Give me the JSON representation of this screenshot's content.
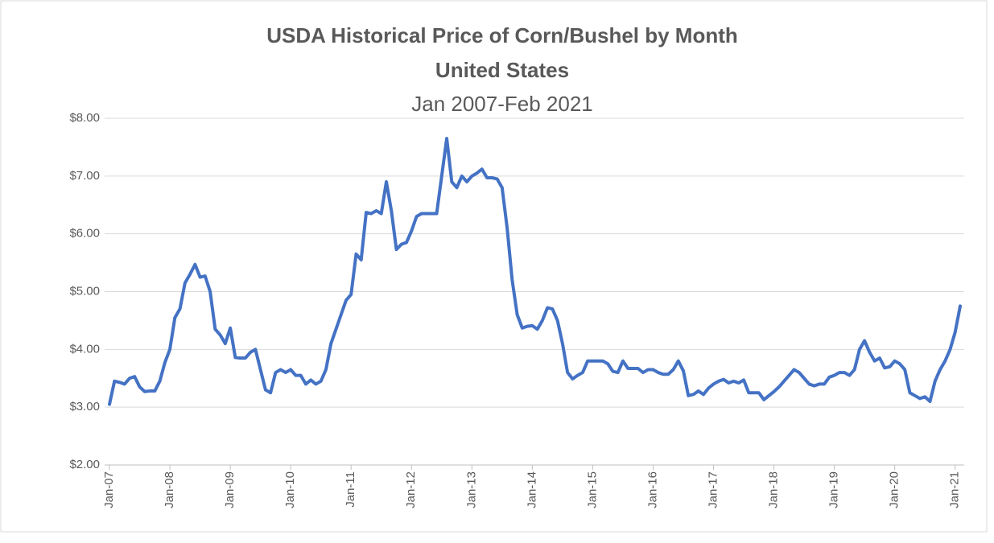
{
  "chart_data": {
    "type": "line",
    "title": "USDA Historical Price of Corn/Bushel  by Month",
    "subtitle": "United States",
    "period": "Jan 2007-Feb 2021",
    "categories": [
      "Jan-07",
      null,
      null,
      null,
      null,
      null,
      null,
      null,
      null,
      null,
      null,
      null,
      "Jan-08",
      null,
      null,
      null,
      null,
      null,
      null,
      null,
      null,
      null,
      null,
      null,
      "Jan-09",
      null,
      null,
      null,
      null,
      null,
      null,
      null,
      null,
      null,
      null,
      null,
      "Jan-10",
      null,
      null,
      null,
      null,
      null,
      null,
      null,
      null,
      null,
      null,
      null,
      "Jan-11",
      null,
      null,
      null,
      null,
      null,
      null,
      null,
      null,
      null,
      null,
      null,
      "Jan-12",
      null,
      null,
      null,
      null,
      null,
      null,
      null,
      null,
      null,
      null,
      null,
      "Jan-13",
      null,
      null,
      null,
      null,
      null,
      null,
      null,
      null,
      null,
      null,
      null,
      "Jan-14",
      null,
      null,
      null,
      null,
      null,
      null,
      null,
      null,
      null,
      null,
      null,
      "Jan-15",
      null,
      null,
      null,
      null,
      null,
      null,
      null,
      null,
      null,
      null,
      null,
      "Jan-16",
      null,
      null,
      null,
      null,
      null,
      null,
      null,
      null,
      null,
      null,
      null,
      "Jan-17",
      null,
      null,
      null,
      null,
      null,
      null,
      null,
      null,
      null,
      null,
      null,
      "Jan-18",
      null,
      null,
      null,
      null,
      null,
      null,
      null,
      null,
      null,
      null,
      null,
      "Jan-19",
      null,
      null,
      null,
      null,
      null,
      null,
      null,
      null,
      null,
      null,
      null,
      "Jan-20",
      null,
      null,
      null,
      null,
      null,
      null,
      null,
      null,
      null,
      null,
      null,
      "Jan-21",
      null
    ],
    "values": [
      3.05,
      3.45,
      3.43,
      3.4,
      3.5,
      3.53,
      3.35,
      3.27,
      3.28,
      3.28,
      3.45,
      3.77,
      4.0,
      4.55,
      4.7,
      5.15,
      5.3,
      5.47,
      5.25,
      5.27,
      5.0,
      4.35,
      4.25,
      4.1,
      4.37,
      3.86,
      3.85,
      3.85,
      3.95,
      4.0,
      3.65,
      3.3,
      3.25,
      3.6,
      3.65,
      3.6,
      3.65,
      3.55,
      3.55,
      3.4,
      3.47,
      3.4,
      3.45,
      3.65,
      4.1,
      4.35,
      4.6,
      4.85,
      4.95,
      5.65,
      5.55,
      6.37,
      6.35,
      6.4,
      6.35,
      6.9,
      6.4,
      5.73,
      5.82,
      5.85,
      6.05,
      6.3,
      6.35,
      6.35,
      6.35,
      6.35,
      7.0,
      7.65,
      6.9,
      6.8,
      7.0,
      6.9,
      7.0,
      7.05,
      7.12,
      6.97,
      6.97,
      6.95,
      6.8,
      6.1,
      5.2,
      4.6,
      4.37,
      4.4,
      4.41,
      4.35,
      4.5,
      4.72,
      4.7,
      4.5,
      4.1,
      3.6,
      3.49,
      3.55,
      3.6,
      3.8,
      3.8,
      3.8,
      3.8,
      3.75,
      3.62,
      3.6,
      3.8,
      3.67,
      3.67,
      3.67,
      3.6,
      3.65,
      3.65,
      3.6,
      3.57,
      3.57,
      3.65,
      3.8,
      3.63,
      3.2,
      3.22,
      3.28,
      3.22,
      3.33,
      3.4,
      3.45,
      3.48,
      3.42,
      3.45,
      3.42,
      3.47,
      3.25,
      3.25,
      3.25,
      3.13,
      3.2,
      3.27,
      3.35,
      3.45,
      3.55,
      3.65,
      3.6,
      3.5,
      3.4,
      3.37,
      3.4,
      3.4,
      3.52,
      3.55,
      3.6,
      3.6,
      3.55,
      3.65,
      4.0,
      4.15,
      3.95,
      3.8,
      3.85,
      3.68,
      3.7,
      3.8,
      3.75,
      3.65,
      3.25,
      3.2,
      3.15,
      3.18,
      3.1,
      3.45,
      3.65,
      3.8,
      4.0,
      4.3,
      4.75
    ],
    "color": "#4472c4",
    "ylim": [
      2,
      8
    ],
    "yticks": [
      {
        "value": 2,
        "label": "$2.00"
      },
      {
        "value": 3,
        "label": "$3.00"
      },
      {
        "value": 4,
        "label": "$4.00"
      },
      {
        "value": 5,
        "label": "$5.00"
      },
      {
        "value": 6,
        "label": "$6.00"
      },
      {
        "value": 7,
        "label": "$7.00"
      },
      {
        "value": 8,
        "label": "$8.00"
      }
    ],
    "grid": true
  }
}
